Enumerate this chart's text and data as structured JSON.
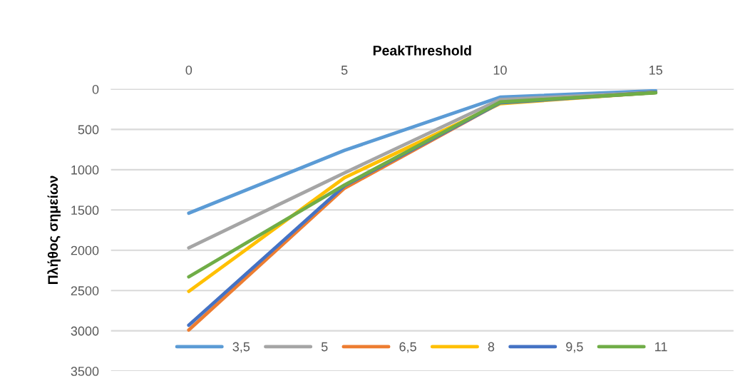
{
  "chart_data": {
    "type": "line",
    "xlabel": "PeakThreshold",
    "ylabel": "Πλήθος σημείων",
    "categories": [
      "0",
      "5",
      "10",
      "15"
    ],
    "series": [
      {
        "name": "3,5",
        "color": "#5b9bd5",
        "values": [
          1540,
          760,
          100,
          20
        ]
      },
      {
        "name": "5",
        "color": "#a5a5a5",
        "values": [
          1970,
          1040,
          130,
          40
        ]
      },
      {
        "name": "6,5",
        "color": "#ed7d31",
        "values": [
          2990,
          1230,
          170,
          40
        ]
      },
      {
        "name": "8",
        "color": "#ffc000",
        "values": [
          2510,
          1100,
          180,
          40
        ]
      },
      {
        "name": "9,5",
        "color": "#4472c4",
        "values": [
          2930,
          1200,
          170,
          40
        ]
      },
      {
        "name": "11",
        "color": "#70ad47",
        "values": [
          2330,
          1190,
          160,
          45
        ]
      }
    ],
    "ylim": [
      3500,
      0
    ],
    "yticks": [
      0,
      500,
      1000,
      1500,
      2000,
      2500,
      3000,
      3500
    ],
    "grid": "y",
    "legend": "bottom",
    "marker": "none",
    "line_style": "solid"
  }
}
